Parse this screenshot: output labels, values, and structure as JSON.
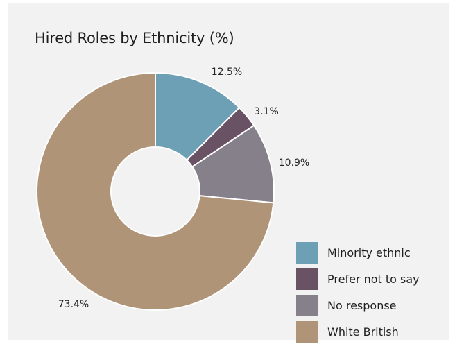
{
  "chart_data": {
    "type": "pie",
    "title": "Hired Roles by Ethnicity (%)",
    "categories": [
      "Minority ethnic",
      "Prefer not to say",
      "No response",
      "White British"
    ],
    "values": [
      12.5,
      3.1,
      10.9,
      73.4
    ],
    "data_labels": [
      "12.5%",
      "3.1%",
      "10.9%",
      "73.4%"
    ],
    "colors": [
      "#6d9fb5",
      "#685263",
      "#85808a",
      "#af9478"
    ],
    "donut": true,
    "legend_position": "bottom-right"
  },
  "legend": {
    "items": [
      {
        "label": "Minority ethnic",
        "color": "#6d9fb5"
      },
      {
        "label": "Prefer not to say",
        "color": "#685263"
      },
      {
        "label": "No response",
        "color": "#85808a"
      },
      {
        "label": "White British",
        "color": "#af9478"
      }
    ]
  },
  "colors": {
    "card_background": "#f1f2f1",
    "text": "#1e1e1e"
  }
}
